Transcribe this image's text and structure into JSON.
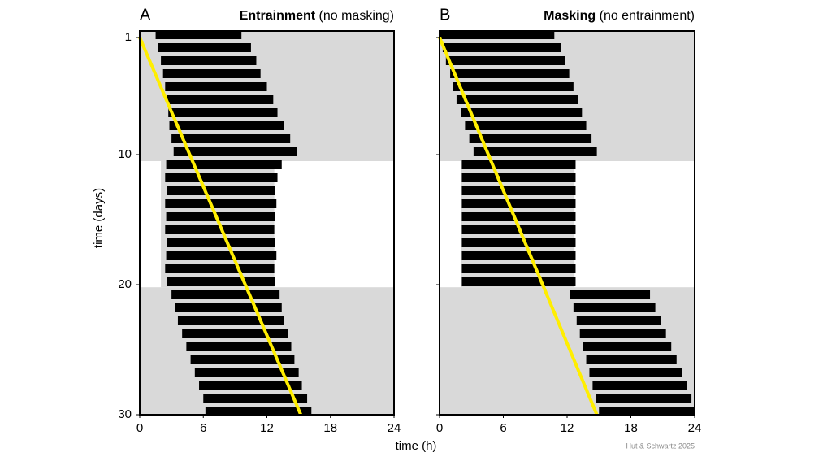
{
  "figure": {
    "ylabel": "time (days)",
    "xlabel": "time (h)",
    "credit": "Hut & Schwartz 2025"
  },
  "chart_data": [
    {
      "type": "actogram",
      "panel": "A",
      "title": "Entrainment",
      "subtitle": "(no masking)",
      "xlim": [
        0,
        24
      ],
      "xticks": [
        0,
        6,
        12,
        18,
        24
      ],
      "ylim": [
        0.5,
        30
      ],
      "yticks": [
        1,
        10,
        20,
        30
      ],
      "activity_color": "#000000",
      "shade_color": "#d9d9d9",
      "shading": [
        {
          "days": [
            0.5,
            10.5
          ],
          "hours": [
            0,
            24
          ]
        },
        {
          "days": [
            10.5,
            20.2
          ],
          "hours": [
            2,
            12.7
          ]
        },
        {
          "days": [
            20.2,
            30
          ],
          "hours": [
            0,
            24
          ]
        }
      ],
      "onset": [
        1.5,
        1.7,
        2,
        2.2,
        2.4,
        2.6,
        2.7,
        2.8,
        3,
        3.2,
        2.5,
        2.4,
        2.6,
        2.4,
        2.5,
        2.4,
        2.6,
        2.5,
        2.4,
        2.6,
        3,
        3.3,
        3.6,
        4,
        4.4,
        4.8,
        5.2,
        5.6,
        6,
        6.2
      ],
      "offset": [
        9.6,
        10.5,
        11,
        11.4,
        12,
        12.6,
        13,
        13.6,
        14.2,
        14.8,
        13.4,
        13,
        12.8,
        12.9,
        12.8,
        12.7,
        12.8,
        12.9,
        12.7,
        12.8,
        13.2,
        13.4,
        13.6,
        14,
        14.3,
        14.6,
        15,
        15.3,
        15.8,
        16.2
      ],
      "phase_line": {
        "x": [
          0,
          15.2
        ],
        "y": [
          1,
          30
        ],
        "color": "#ffee00"
      }
    },
    {
      "type": "actogram",
      "panel": "B",
      "title": "Masking",
      "subtitle": "(no entrainment)",
      "xlim": [
        0,
        24
      ],
      "xticks": [
        0,
        6,
        12,
        18,
        24
      ],
      "ylim": [
        0.5,
        30
      ],
      "yticks": [
        1,
        10,
        20,
        30
      ],
      "activity_color": "#000000",
      "shade_color": "#d9d9d9",
      "shading": [
        {
          "days": [
            0.5,
            10.5
          ],
          "hours": [
            0,
            24
          ]
        },
        {
          "days": [
            10.5,
            20.2
          ],
          "hours": [
            2,
            12.7
          ]
        },
        {
          "days": [
            20.2,
            30
          ],
          "hours": [
            0,
            24
          ]
        }
      ],
      "onset": [
        0,
        0.3,
        0.6,
        1,
        1.3,
        1.6,
        2,
        2.4,
        2.8,
        3.2,
        2.1,
        2.1,
        2.1,
        2.1,
        2.1,
        2.1,
        2.1,
        2.1,
        2.1,
        2.1,
        12.3,
        12.6,
        12.9,
        13.2,
        13.5,
        13.8,
        14.1,
        14.4,
        14.7,
        15
      ],
      "offset": [
        10.8,
        11.4,
        11.8,
        12.2,
        12.6,
        13,
        13.4,
        13.8,
        14.3,
        14.8,
        12.8,
        12.8,
        12.8,
        12.8,
        12.8,
        12.8,
        12.8,
        12.8,
        12.8,
        12.8,
        19.8,
        20.3,
        20.8,
        21.3,
        21.8,
        22.3,
        22.8,
        23.3,
        23.7,
        24
      ],
      "phase_line": {
        "x": [
          0,
          14.8
        ],
        "y": [
          1,
          30
        ],
        "color": "#ffee00"
      }
    }
  ]
}
